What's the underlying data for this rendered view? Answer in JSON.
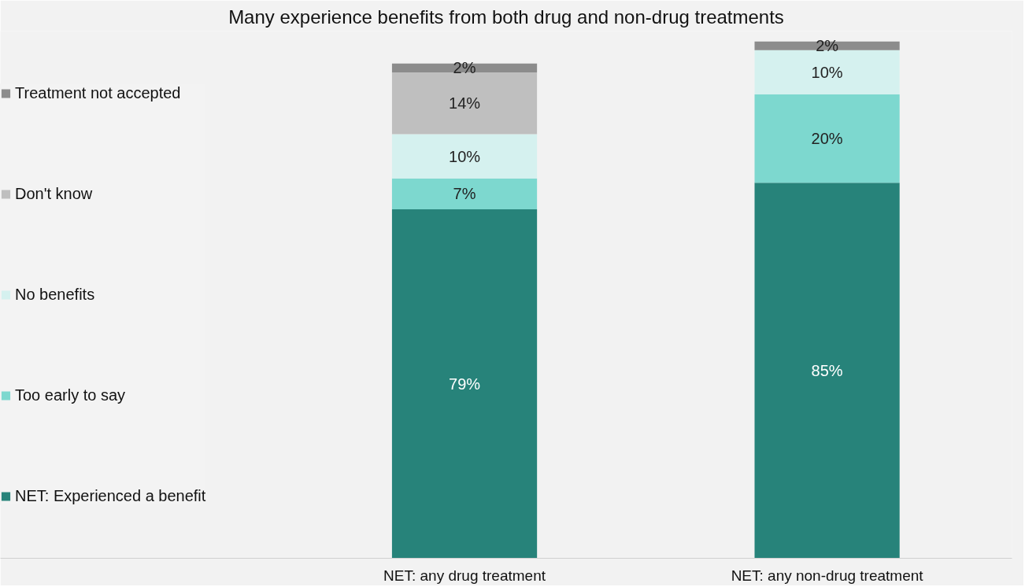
{
  "chart_data": {
    "type": "bar",
    "stacked": true,
    "data_labels": true,
    "legend": "left",
    "grid": false,
    "title": "Many experience benefits from both drug and non-drug treatments",
    "categories": [
      "NET: any drug treatment",
      "NET: any non-drug treatment"
    ],
    "series": [
      {
        "name": "NET: Experienced a benefit",
        "color": "#27837a",
        "values": [
          79,
          85
        ],
        "value_labels": [
          "79%",
          "85%"
        ]
      },
      {
        "name": "Too early to say",
        "color": "#7dd8cf",
        "values": [
          7,
          20
        ],
        "value_labels": [
          "7%",
          "20%"
        ]
      },
      {
        "name": "No benefits",
        "color": "#d5f1ef",
        "values": [
          10,
          10
        ],
        "value_labels": [
          "10%",
          "10%"
        ]
      },
      {
        "name": "Don't know",
        "color": "#bfbfbf",
        "values": [
          14,
          null
        ],
        "value_labels": [
          "14%",
          null
        ]
      },
      {
        "name": "Treatment not accepted",
        "color": "#8c8c8c",
        "values": [
          2,
          2
        ],
        "value_labels": [
          "2%",
          "2%"
        ]
      }
    ]
  }
}
